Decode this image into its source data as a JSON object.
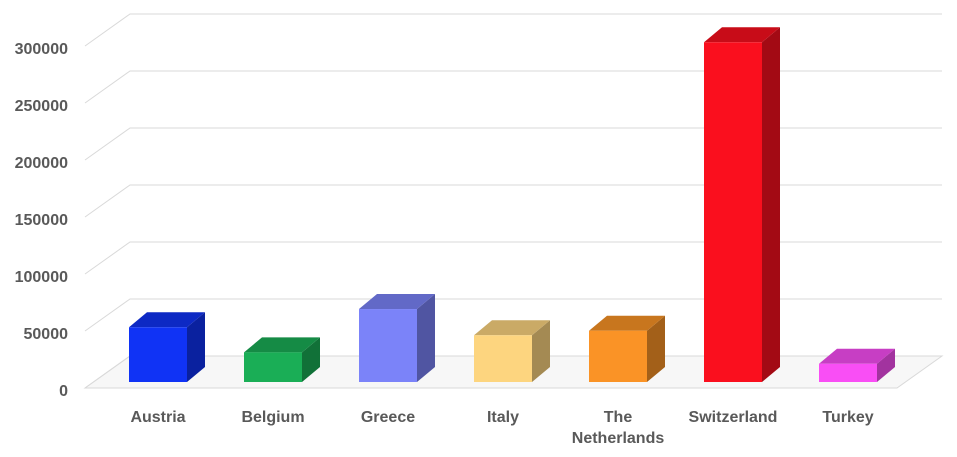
{
  "chart_data": {
    "type": "bar3d",
    "categories": [
      "Austria",
      "Belgium",
      "Greece",
      "Italy",
      "The Netherlands",
      "Switzerland",
      "Turkey"
    ],
    "values": [
      48000,
      26000,
      64000,
      41000,
      45000,
      298000,
      16000
    ],
    "colors": [
      "#1033f5",
      "#1aae56",
      "#7b83f9",
      "#fdd57f",
      "#fa9326",
      "#fa0f1e",
      "#f94ef5"
    ],
    "ylim": [
      0,
      300000
    ],
    "yticks": [
      0,
      50000,
      100000,
      150000,
      200000,
      250000,
      300000
    ],
    "grid": true
  }
}
